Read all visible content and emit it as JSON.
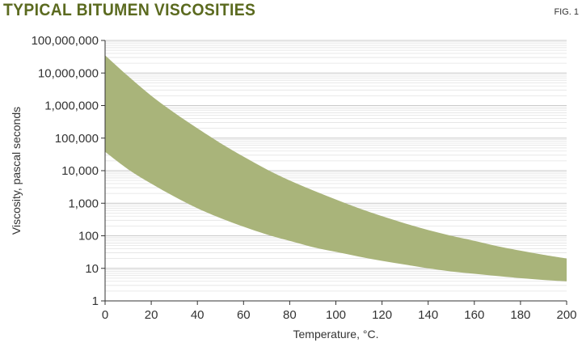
{
  "header": {
    "title": "TYPICAL BITUMEN VISCOSITIES",
    "fig_label": "FIG. 1",
    "title_color": "#5b6a1f"
  },
  "chart_data": {
    "type": "area",
    "title": "TYPICAL BITUMEN VISCOSITIES",
    "xlabel": "Temperature, °C.",
    "ylabel": "Viscosity, pascal seconds",
    "xlim": [
      0,
      200
    ],
    "ylim": [
      1,
      100000000
    ],
    "y_scale": "log",
    "grid": "horizontal minor log gridlines",
    "band_color": "#a9b47a",
    "x_ticks": [
      0,
      20,
      40,
      60,
      80,
      100,
      120,
      140,
      160,
      180,
      200
    ],
    "x_tick_labels": [
      "0",
      "20",
      "40",
      "60",
      "80",
      "100",
      "120",
      "140",
      "160",
      "180",
      "200"
    ],
    "y_ticks": [
      1,
      10,
      100,
      1000,
      10000,
      100000,
      1000000,
      10000000,
      100000000
    ],
    "y_tick_labels": [
      "1",
      "10",
      "100",
      "1,000",
      "10,000",
      "100,000",
      "1,000,000",
      "10,000,000",
      "100,000,000"
    ],
    "x": [
      0,
      10,
      20,
      30,
      40,
      50,
      60,
      70,
      80,
      90,
      100,
      110,
      120,
      130,
      140,
      150,
      160,
      170,
      180,
      190,
      200
    ],
    "upper": [
      35000000,
      8000000,
      2000000,
      600000,
      200000,
      70000,
      27000,
      11000,
      5000,
      2500,
      1300,
      700,
      400,
      240,
      150,
      100,
      70,
      48,
      35,
      26,
      20
    ],
    "lower": [
      38000,
      11000,
      4000,
      1600,
      700,
      350,
      190,
      110,
      70,
      45,
      32,
      23,
      17,
      13,
      10,
      8,
      6.8,
      5.8,
      5,
      4.4,
      4
    ]
  }
}
